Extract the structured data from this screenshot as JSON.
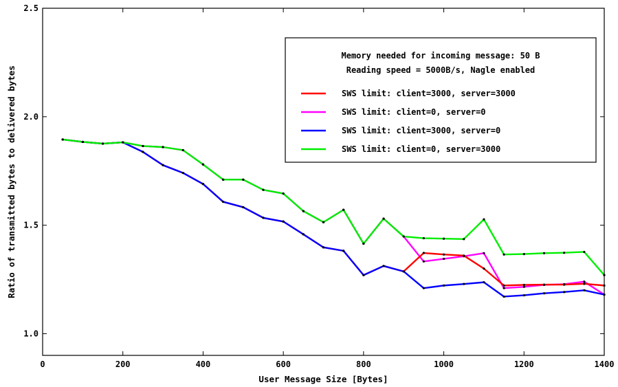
{
  "chart_data": {
    "type": "line",
    "title": "",
    "xlabel": "User Message Size [Bytes]",
    "ylabel": "Ratio of transmitted bytes to delivered bytes",
    "xlim": [
      0,
      1400
    ],
    "ylim": [
      0.9,
      2.5
    ],
    "xticks": [
      0,
      200,
      400,
      600,
      800,
      1000,
      1200,
      1400
    ],
    "xtick_labels": [
      "0",
      "200",
      "400",
      "600",
      "800",
      "1000",
      "1200",
      "1400"
    ],
    "yticks": [
      1.0,
      1.5,
      2.0,
      2.5
    ],
    "ytick_labels": [
      "1.0",
      "1.5",
      "2.0",
      "2.5"
    ],
    "grid": false,
    "legend_position": "top-right",
    "legend_header": [
      "Memory needed for incoming message: 50 B",
      "Reading speed = 5000B/s, Nagle enabled"
    ],
    "x": [
      50,
      100,
      150,
      200,
      250,
      300,
      350,
      400,
      450,
      500,
      550,
      600,
      650,
      700,
      750,
      800,
      850,
      900,
      950,
      1000,
      1050,
      1100,
      1150,
      1200,
      1250,
      1300,
      1350,
      1400
    ],
    "series": [
      {
        "name": "SWS limit: client=3000, server=3000",
        "color": "#ff0000",
        "values": [
          1.895,
          1.884,
          1.876,
          1.882,
          1.838,
          1.777,
          1.741,
          1.69,
          1.608,
          1.583,
          1.534,
          1.517,
          1.458,
          1.398,
          1.382,
          1.27,
          1.312,
          1.287,
          1.372,
          1.365,
          1.36,
          1.3,
          1.222,
          1.225,
          1.226,
          1.226,
          1.23,
          1.222
        ]
      },
      {
        "name": "SWS limit: client=0, server=0",
        "color": "#ff00ff",
        "values": [
          1.895,
          1.884,
          1.876,
          1.882,
          1.865,
          1.86,
          1.846,
          1.78,
          1.71,
          1.71,
          1.663,
          1.646,
          1.565,
          1.514,
          1.571,
          1.415,
          1.53,
          1.448,
          1.333,
          1.345,
          1.357,
          1.371,
          1.21,
          1.216,
          1.225,
          1.228,
          1.24,
          1.18
        ]
      },
      {
        "name": "SWS limit: client=3000, server=0",
        "color": "#0000ff",
        "values": [
          1.895,
          1.884,
          1.876,
          1.882,
          1.838,
          1.777,
          1.741,
          1.69,
          1.608,
          1.583,
          1.534,
          1.517,
          1.458,
          1.398,
          1.382,
          1.27,
          1.312,
          1.287,
          1.21,
          1.222,
          1.229,
          1.237,
          1.171,
          1.177,
          1.186,
          1.192,
          1.2,
          1.18
        ]
      },
      {
        "name": "SWS limit: client=0, server=3000",
        "color": "#00ee00",
        "values": [
          1.895,
          1.884,
          1.876,
          1.882,
          1.865,
          1.86,
          1.846,
          1.78,
          1.71,
          1.71,
          1.663,
          1.646,
          1.565,
          1.514,
          1.571,
          1.415,
          1.53,
          1.448,
          1.44,
          1.438,
          1.436,
          1.527,
          1.365,
          1.367,
          1.371,
          1.373,
          1.377,
          1.27
        ]
      }
    ],
    "draw_order": [
      1,
      0,
      2,
      3
    ],
    "legend_order": [
      0,
      1,
      2,
      3
    ]
  }
}
